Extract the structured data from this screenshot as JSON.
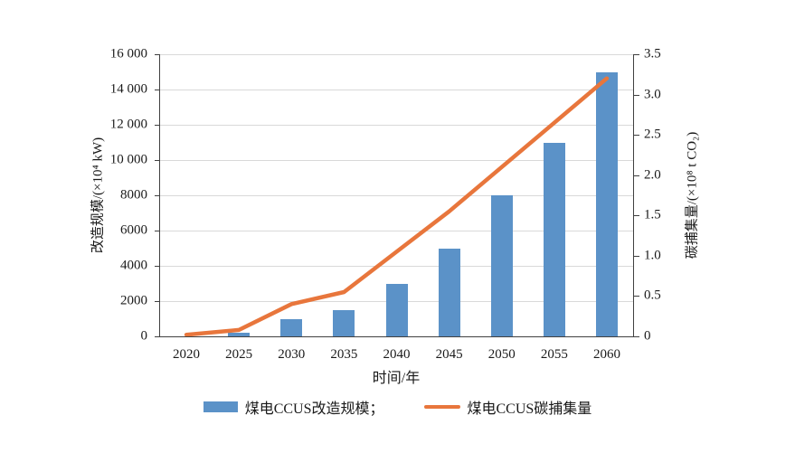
{
  "chart_data": {
    "type": "combo-bar-line",
    "title": "",
    "xlabel": "时间/年",
    "ylabel_left": "改造规模/(×10⁴ kW)",
    "ylabel_right": "碳捕集量/(×10⁸ t CO₂)",
    "categories": [
      "2020",
      "2025",
      "2030",
      "2035",
      "2040",
      "2045",
      "2050",
      "2055",
      "2060"
    ],
    "left_axis": {
      "ylim": [
        0,
        16000
      ],
      "tick_labels": [
        "0",
        "2000",
        "4000",
        "6000",
        "8000",
        "10 000",
        "12 000",
        "14 000",
        "16 000"
      ]
    },
    "right_axis": {
      "ylim": [
        0,
        3.5
      ],
      "tick_labels": [
        "0",
        "0.5",
        "1.0",
        "1.5",
        "2.0",
        "2.5",
        "3.0",
        "3.5"
      ]
    },
    "grid": "horizontal",
    "legend_position": "bottom",
    "series": [
      {
        "name": "煤电CCUS改造规模",
        "type": "bar",
        "axis": "left",
        "color": "#5b92c8",
        "values": [
          0,
          200,
          1000,
          1500,
          3000,
          5000,
          8000,
          11000,
          15000
        ]
      },
      {
        "name": "煤电CCUS碳捕集量",
        "type": "line",
        "axis": "right",
        "color": "#e8763c",
        "values": [
          0.02,
          0.08,
          0.4,
          0.55,
          1.05,
          1.55,
          2.1,
          2.65,
          3.2
        ]
      }
    ],
    "legend": [
      "煤电CCUS改造规模；",
      "煤电CCUS碳捕集量"
    ]
  }
}
